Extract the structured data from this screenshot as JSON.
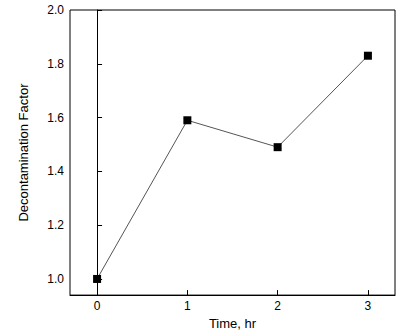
{
  "chart_data": {
    "type": "line",
    "x_label": "Time, hr",
    "y_label": "Decontamination Factor",
    "x": [
      0,
      1,
      2,
      3
    ],
    "values": [
      1.0,
      1.59,
      1.49,
      1.83
    ],
    "color": "#000000",
    "marker": "square",
    "xlim": [
      -0.3,
      3.3
    ],
    "xticks": [
      0,
      1,
      2,
      3
    ],
    "ylim": [
      0.94,
      2.0
    ],
    "yticks": [
      {
        "value": 1.0,
        "label": "1.0"
      },
      1.2,
      1.4,
      1.6,
      1.8,
      {
        "value": 2.0,
        "label": "2.0"
      }
    ],
    "grid": false
  }
}
